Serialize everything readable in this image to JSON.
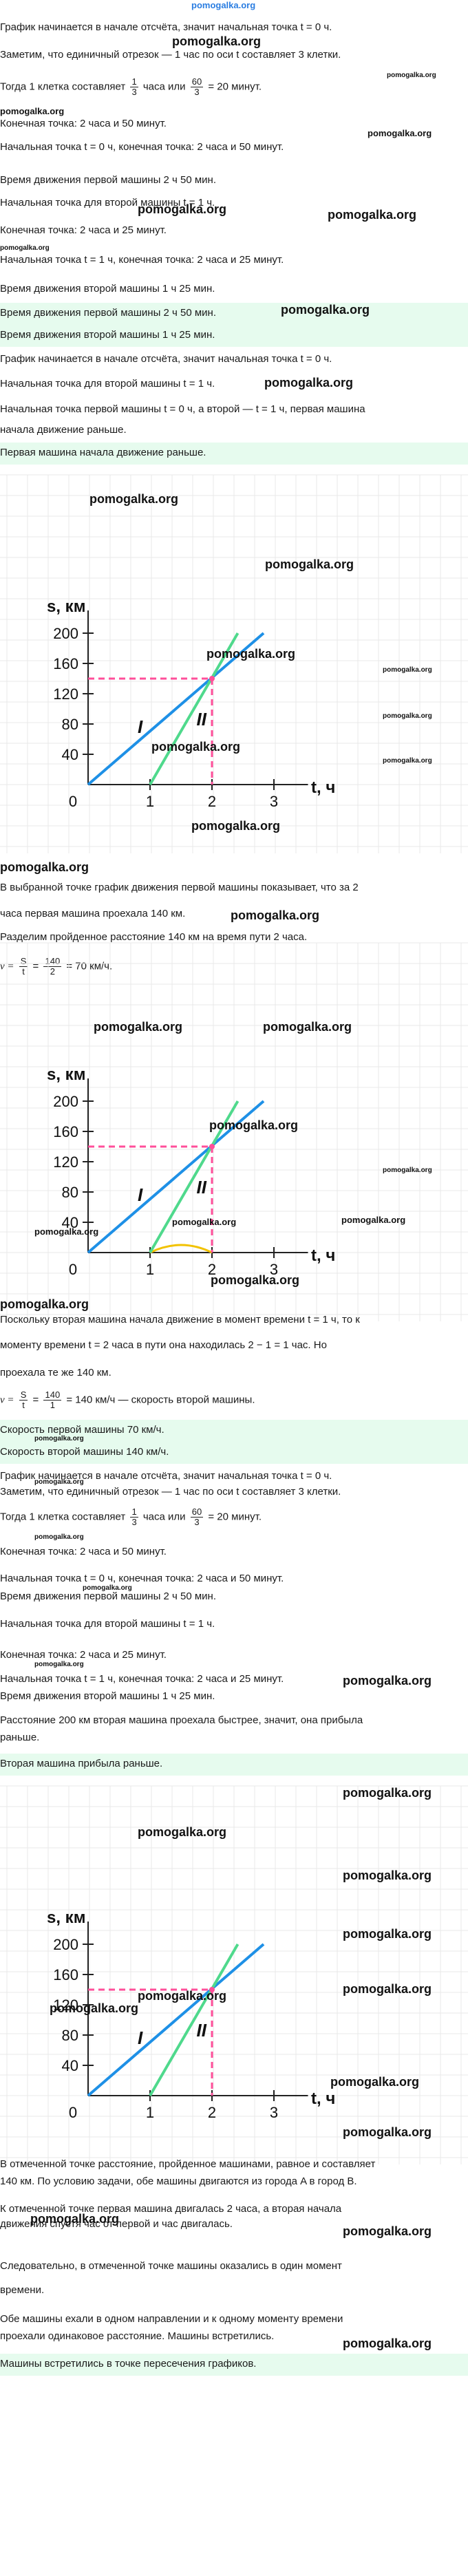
{
  "logo": "pomogalka.org",
  "watermark": "pomogalka.org",
  "section1": {
    "lines": [
      "График начинается в начале отсчёта, значит начальная точка t = 0 ч.",
      "Заметим, что единичный отрезок — 1 час по оси t составляет 3 клетки.",
      "Тогда 1 клетка составляет",
      "часа или",
      "= 20 минут.",
      "Конечная точка: 2 часа и 50 минут.",
      "Начальная точка t = 0 ч, конечная точка: 2 часа и 50 минут.",
      "Время движения первой машины 2 ч 50 мин.",
      "Начальная точка для второй машины t = 1 ч.",
      "Конечная точка: 2 часа и 25 минут.",
      "Начальная точка t = 1 ч, конечная точка: 2 часа и 25 минут.",
      "Время движения второй машины 1 ч 25 мин."
    ],
    "frac1": {
      "num": "1",
      "den": "3"
    },
    "frac2": {
      "num": "60",
      "den": "3"
    },
    "answers": [
      "Время движения первой машины 2 ч 50 мин.",
      "Время движения второй машины 1 ч 25 мин."
    ]
  },
  "section2": {
    "lines": [
      "График начинается в начале отсчёта, значит начальная точка t = 0 ч.",
      "Начальная точка для второй машины t = 1 ч.",
      "Начальная точка первой машины t = 0 ч, а второй — t = 1 ч, первая машина",
      "начала движение раньше."
    ],
    "answer": "Первая машина начала движение раньше."
  },
  "section3": {
    "lines": [
      "В выбранной точке график движения первой машины показывает, что за 2",
      "часа первая машина проехала 140 км.",
      "Разделим пройденное расстояние 140 км на время пути 2 часа."
    ],
    "formula": {
      "v": "v =",
      "eq1": "=",
      "num1": "S",
      "den1": "t",
      "num2": "140",
      "den2": "2",
      "res": "= 70 км/ч."
    }
  },
  "section4": {
    "lines": [
      "Поскольку вторая машина начала движение в момент времени t = 1 ч, то к",
      "моменту времени t = 2 часа в пути она находилась 2 − 1 = 1 час. Но",
      "проехала те же 140 км."
    ],
    "formula": {
      "v": "v =",
      "eq1": "=",
      "num1": "S",
      "den1": "t",
      "num2": "140",
      "den2": "1",
      "res": "= 140 км/ч — скорость второй машины."
    },
    "answers": [
      "Скорость первой машины 70 км/ч.",
      "Скорость второй машины 140 км/ч."
    ]
  },
  "section5": {
    "lines": [
      "График начинается в начале отсчёта, значит начальная точка t = 0 ч.",
      "Заметим, что единичный отрезок — 1 час по оси t составляет 3 клетки.",
      "Тогда 1 клетка составляет",
      "часа или",
      "= 20 минут.",
      "Конечная точка: 2 часа и 50 минут.",
      "Начальная точка t = 0 ч, конечная точка: 2 часа и 50 минут.",
      "Время движения первой машины 2 ч 50 мин.",
      "Начальная точка для второй машины t = 1 ч.",
      "Конечная точка: 2 часа и 25 минут.",
      "Начальная точка t = 1 ч, конечная точка: 2 часа и 25 минут.",
      "Время движения второй машины 1 ч 25 мин.",
      "Расстояние 200 км вторая машина проехала быстрее, значит, она прибыла",
      "раньше."
    ],
    "frac1": {
      "num": "1",
      "den": "3"
    },
    "frac2": {
      "num": "60",
      "den": "3"
    },
    "answer": "Вторая машина прибыла раньше."
  },
  "section6": {
    "lines": [
      "В отмеченной точке расстояние, пройденное машинами, равное и составляет",
      "140 км. По условию задачи, обе машины двигаются из города A в город B.",
      "К отмеченной точке первая машина двигалась 2 часа, а вторая начала",
      "движения спустя час от первой и час двигалась.",
      "Следовательно, в отмеченной точке машины оказались в один момент",
      "времени.",
      "Обе машины ехали в одном направлении и к одному моменту времени",
      "проехали одинаковое расстояние. Машины встретились."
    ],
    "answer": "Машины встретились в точке пересечения графиков."
  },
  "chart_data": [
    {
      "type": "line",
      "xlabel": "t, ч",
      "ylabel": "s, км",
      "x_ticks": [
        "0",
        "1",
        "2",
        "3"
      ],
      "y_ticks": [
        "40",
        "80",
        "120",
        "160",
        "200"
      ],
      "xlim": [
        0,
        3.3
      ],
      "ylim": [
        0,
        215
      ],
      "series": [
        {
          "name": "I",
          "color": "#1e90e6",
          "x": [
            0,
            2.8333
          ],
          "y": [
            0,
            200
          ]
        },
        {
          "name": "II",
          "color": "#4fd98c",
          "x": [
            1,
            2.4167
          ],
          "y": [
            0,
            200
          ]
        }
      ],
      "marker": {
        "x": 2,
        "y": 140,
        "color": "#ff4f9a"
      },
      "highlight_arc": false
    },
    {
      "type": "line",
      "xlabel": "t, ч",
      "ylabel": "s, км",
      "x_ticks": [
        "0",
        "1",
        "2",
        "3"
      ],
      "y_ticks": [
        "40",
        "80",
        "120",
        "160",
        "200"
      ],
      "xlim": [
        0,
        3.3
      ],
      "ylim": [
        0,
        215
      ],
      "series": [
        {
          "name": "I",
          "color": "#1e90e6",
          "x": [
            0,
            2.8333
          ],
          "y": [
            0,
            200
          ]
        },
        {
          "name": "II",
          "color": "#4fd98c",
          "x": [
            1,
            2.4167
          ],
          "y": [
            0,
            200
          ]
        }
      ],
      "marker": {
        "x": 2,
        "y": 140,
        "color": "#ff4f9a"
      },
      "highlight_arc": true
    },
    {
      "type": "line",
      "xlabel": "t, ч",
      "ylabel": "s, км",
      "x_ticks": [
        "0",
        "1",
        "2",
        "3"
      ],
      "y_ticks": [
        "40",
        "80",
        "120",
        "160",
        "200"
      ],
      "xlim": [
        0,
        3.3
      ],
      "ylim": [
        0,
        215
      ],
      "series": [
        {
          "name": "I",
          "color": "#1e90e6",
          "x": [
            0,
            2.8333
          ],
          "y": [
            0,
            200
          ]
        },
        {
          "name": "II",
          "color": "#4fd98c",
          "x": [
            1,
            2.4167
          ],
          "y": [
            0,
            200
          ]
        }
      ],
      "marker": {
        "x": 2,
        "y": 140,
        "color": "#ff4f9a"
      },
      "highlight_arc": false
    }
  ]
}
